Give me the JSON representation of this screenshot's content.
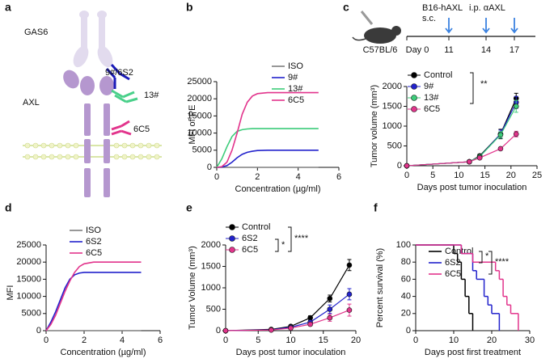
{
  "panel_labels": [
    "a",
    "b",
    "c",
    "d",
    "e",
    "f"
  ],
  "diagram": {
    "ligand": "GAS6",
    "receptor": "AXL",
    "antibody_1": "9#/6S2",
    "antibody_2": "13#",
    "antibody_3": "6C5"
  },
  "schedule": {
    "cells": "B16-hAXL",
    "route": "s.c.",
    "treatment": "i.p. αAXL",
    "strain": "C57BL/6",
    "days": [
      "Day 0",
      "11",
      "14",
      "17"
    ]
  },
  "chart_data": [
    {
      "type": "line",
      "xlabel": "Concentration (µg/ml)",
      "ylabel": "MFI of PE",
      "x": [
        0,
        0.25,
        0.5,
        0.75,
        1,
        1.25,
        1.5,
        1.75,
        2,
        2.5,
        3,
        3.5,
        4,
        4.5,
        5
      ],
      "series": [
        {
          "name": "ISO",
          "color": "#7f7f7f",
          "values": [
            0,
            0,
            0,
            0,
            0,
            0,
            0,
            0,
            0,
            0,
            0,
            0,
            0,
            0,
            0
          ]
        },
        {
          "name": "9#",
          "color": "#2222cc",
          "values": [
            0,
            100,
            500,
            1500,
            2800,
            3800,
            4400,
            4700,
            4900,
            5000,
            5000,
            5000,
            5000,
            5000,
            5000
          ]
        },
        {
          "name": "13#",
          "color": "#3dcc7a",
          "values": [
            0,
            2500,
            6000,
            9000,
            10500,
            11000,
            11200,
            11300,
            11300,
            11300,
            11300,
            11300,
            11300,
            11300,
            11300
          ]
        },
        {
          "name": "6C5",
          "color": "#e2348c",
          "values": [
            0,
            200,
            1500,
            5000,
            10000,
            15500,
            19000,
            20800,
            21500,
            21800,
            21800,
            21800,
            21800,
            21800,
            21800
          ]
        }
      ],
      "xlim": [
        0,
        6
      ],
      "xticks": [
        0,
        2,
        4,
        6
      ],
      "ylim": [
        0,
        25000
      ],
      "yticks": [
        0,
        5000,
        10000,
        15000,
        20000,
        25000
      ]
    },
    {
      "type": "errorline",
      "xlabel": "Days post tumor inoculation",
      "ylabel": "Tumor volume (mm³)",
      "x": [
        0,
        12,
        14,
        18,
        21
      ],
      "series": [
        {
          "name": "Control",
          "color": "#000000",
          "values": [
            0,
            100,
            250,
            800,
            1700
          ],
          "errors": [
            0,
            20,
            40,
            120,
            130
          ]
        },
        {
          "name": "9#",
          "color": "#2222cc",
          "values": [
            0,
            100,
            230,
            800,
            1600
          ],
          "errors": [
            0,
            20,
            40,
            100,
            150
          ]
        },
        {
          "name": "13#",
          "color": "#3dcc7a",
          "values": [
            0,
            100,
            230,
            780,
            1500
          ],
          "errors": [
            0,
            20,
            40,
            80,
            150
          ]
        },
        {
          "name": "6C5",
          "color": "#e2348c",
          "values": [
            0,
            100,
            200,
            430,
            800
          ],
          "errors": [
            0,
            15,
            20,
            30,
            70
          ]
        }
      ],
      "annotations": [
        "**"
      ],
      "xlim": [
        0,
        25
      ],
      "xticks": [
        0,
        5,
        10,
        15,
        20,
        25
      ],
      "ylim": [
        0,
        2000
      ],
      "yticks": [
        0,
        500,
        1000,
        1500,
        2000
      ]
    },
    {
      "type": "line",
      "xlabel": "Concentration (µg/ml)",
      "ylabel": "MFI",
      "x": [
        0,
        0.25,
        0.5,
        0.75,
        1,
        1.25,
        1.5,
        1.75,
        2,
        2.5,
        3,
        3.5,
        4,
        4.5,
        5
      ],
      "series": [
        {
          "name": "ISO",
          "color": "#7f7f7f",
          "values": [
            0,
            0,
            0,
            0,
            0,
            0,
            0,
            0,
            0,
            0,
            0,
            0,
            0,
            0,
            0
          ]
        },
        {
          "name": "6S2",
          "color": "#2222cc",
          "values": [
            0,
            2500,
            5500,
            9000,
            12500,
            15000,
            16300,
            16800,
            17000,
            17000,
            17000,
            17000,
            17000,
            17000,
            17000
          ]
        },
        {
          "name": "6C5",
          "color": "#e2348c",
          "values": [
            0,
            1800,
            4500,
            8000,
            11500,
            14500,
            17000,
            18700,
            19500,
            20000,
            20000,
            20000,
            20000,
            20000,
            20000
          ]
        }
      ],
      "xlim": [
        0,
        6
      ],
      "xticks": [
        0,
        2,
        4,
        6
      ],
      "ylim": [
        0,
        25000
      ],
      "yticks": [
        0,
        5000,
        10000,
        15000,
        20000,
        25000
      ]
    },
    {
      "type": "errorline",
      "xlabel": "Days post tumor inoculation",
      "ylabel": "Tumor Volume (mm³)",
      "x": [
        0,
        7,
        10,
        13,
        16,
        19
      ],
      "series": [
        {
          "name": "Control",
          "color": "#000000",
          "values": [
            0,
            30,
            100,
            300,
            750,
            1530
          ],
          "errors": [
            0,
            10,
            20,
            50,
            80,
            130
          ]
        },
        {
          "name": "6S2",
          "color": "#2222cc",
          "values": [
            0,
            20,
            80,
            200,
            500,
            850
          ],
          "errors": [
            0,
            10,
            20,
            40,
            100,
            130
          ]
        },
        {
          "name": "6C5",
          "color": "#e2348c",
          "values": [
            0,
            15,
            60,
            150,
            300,
            480
          ],
          "errors": [
            0,
            10,
            20,
            40,
            80,
            140
          ]
        }
      ],
      "annotations": [
        "*",
        "****"
      ],
      "xlim": [
        0,
        20
      ],
      "xticks": [
        0,
        5,
        10,
        15,
        20
      ],
      "ylim": [
        0,
        2000
      ],
      "yticks": [
        0,
        500,
        1000,
        1500,
        2000
      ]
    },
    {
      "type": "step",
      "xlabel": "Days post first treatment",
      "ylabel": "Percent survival (%)",
      "series": [
        {
          "name": "Control",
          "color": "#000000",
          "x": [
            0,
            10,
            11,
            12,
            13,
            14,
            15
          ],
          "values": [
            100,
            90,
            80,
            60,
            40,
            20,
            0
          ]
        },
        {
          "name": "6S2",
          "color": "#2222cc",
          "x": [
            0,
            12,
            15,
            16,
            18,
            19,
            20,
            22
          ],
          "values": [
            100,
            90,
            70,
            60,
            40,
            30,
            20,
            0
          ]
        },
        {
          "name": "6C5",
          "color": "#e2348c",
          "x": [
            0,
            12,
            15,
            21,
            22,
            23,
            24,
            25,
            27
          ],
          "values": [
            100,
            90,
            80,
            70,
            60,
            40,
            30,
            20,
            0
          ]
        }
      ],
      "annotations": [
        "*",
        "****"
      ],
      "xlim": [
        0,
        30
      ],
      "xticks": [
        0,
        10,
        20,
        30
      ],
      "ylim": [
        0,
        100
      ],
      "yticks": [
        0,
        20,
        40,
        60,
        80,
        100
      ]
    }
  ]
}
